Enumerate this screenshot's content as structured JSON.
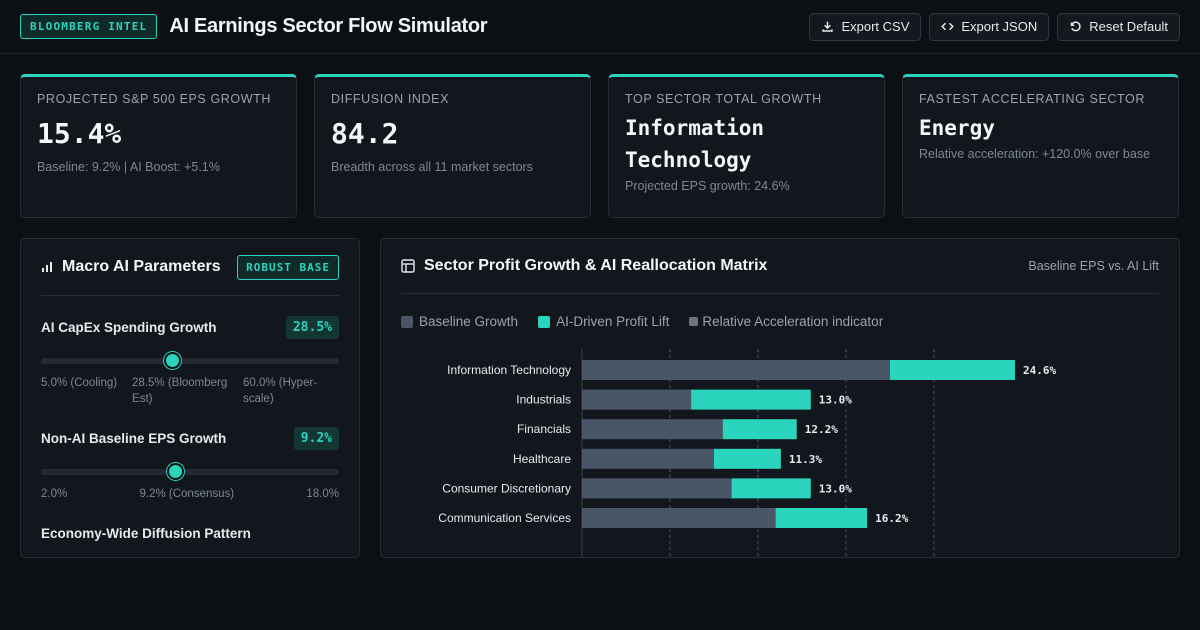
{
  "header": {
    "badge": "BLOOMBERG INTEL",
    "title": "AI Earnings Sector Flow Simulator",
    "actions": [
      {
        "label": "Export CSV",
        "icon": "download-icon"
      },
      {
        "label": "Export JSON",
        "icon": "code-icon"
      },
      {
        "label": "Reset Default",
        "icon": "reset-icon"
      }
    ]
  },
  "kpis": [
    {
      "label": "Projected S&P 500 EPS Growth",
      "value": "15.4%",
      "sub": "Baseline: 9.2% | AI Boost: +5.1%"
    },
    {
      "label": "Diffusion Index",
      "value": "84.2",
      "sub": "Breadth across all 11 market sectors"
    },
    {
      "label": "Top Sector Total Growth",
      "value": "Information Technology",
      "sub": "Projected EPS growth: 24.6%"
    },
    {
      "label": "Fastest Accelerating Sector",
      "value": "Energy",
      "sub": "Relative acceleration: +120.0% over base"
    }
  ],
  "left_panel": {
    "title": "Macro AI Parameters",
    "badge": "ROBUST BASE",
    "params": [
      {
        "label": "AI CapEx Spending Growth",
        "value": "28.5%",
        "level_pct": 44,
        "ticks": [
          "5.0% (Cooling)",
          "28.5% (Bloomberg Est)",
          "60.0% (Hyper-scale)"
        ]
      },
      {
        "label": "Non-AI Baseline EPS Growth",
        "value": "9.2%",
        "level_pct": 45,
        "ticks": [
          "2.0%",
          "9.2% (Consensus)",
          "18.0%"
        ]
      }
    ],
    "section_label": "Economy-Wide Diffusion Pattern"
  },
  "right_panel": {
    "title": "Sector Profit Growth & AI Reallocation Matrix",
    "meta": "Baseline EPS vs. AI Lift",
    "legend": [
      {
        "label": "Baseline Growth",
        "color": "#4a5668"
      },
      {
        "label": "AI-Driven Profit Lift",
        "color": "#2bd4bd"
      },
      {
        "label": "Relative Acceleration indicator",
        "color": "#6b7480"
      }
    ]
  },
  "chart_data": {
    "type": "bar",
    "orientation": "horizontal",
    "stacked": true,
    "categories": [
      "Information Technology",
      "Industrials",
      "Financials",
      "Healthcare",
      "Consumer Discretionary",
      "Communication Services"
    ],
    "series": [
      {
        "name": "Baseline Growth",
        "values": [
          17.5,
          6.2,
          8.0,
          7.5,
          8.5,
          11.0
        ]
      },
      {
        "name": "AI-Driven Profit Lift",
        "values": [
          7.1,
          6.8,
          4.2,
          3.8,
          4.5,
          5.2
        ]
      }
    ],
    "labels": [
      "24.6%",
      "13.0%",
      "12.2%",
      "11.3%",
      "13.0%",
      "16.2%"
    ],
    "xlim": [
      0,
      25
    ],
    "grid": true
  }
}
